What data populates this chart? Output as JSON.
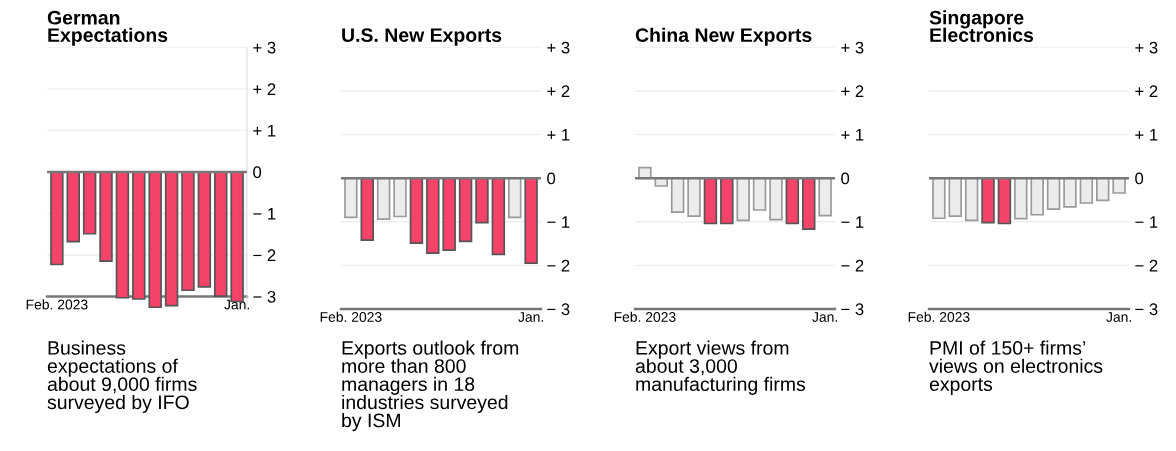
{
  "chart_data": [
    {
      "type": "bar",
      "title": "German\nExpectations",
      "categories": [
        "Feb. 2023",
        null,
        null,
        null,
        null,
        null,
        null,
        null,
        null,
        null,
        null,
        "Jan."
      ],
      "values": [
        -2.23,
        -1.68,
        -1.49,
        -2.15,
        -3.03,
        -3.06,
        -3.26,
        -3.22,
        -2.85,
        -2.77,
        -2.99,
        -3.12
      ],
      "colors": [
        "#f5436a",
        "#f5436a",
        "#f5436a",
        "#f5436a",
        "#f5436a",
        "#f5436a",
        "#f5436a",
        "#f5436a",
        "#f5436a",
        "#f5436a",
        "#f5436a",
        "#f5436a"
      ],
      "ylim": [
        -3.3,
        3
      ],
      "yticks": [
        {
          "value": 3,
          "label": "+ 3"
        },
        {
          "value": 2,
          "label": "+ 2"
        },
        {
          "value": 1,
          "label": "+ 1"
        },
        0,
        {
          "value": -1,
          "label": "− 1"
        },
        {
          "value": -2,
          "label": "− 2"
        },
        {
          "value": -3,
          "label": "− 3"
        }
      ],
      "grid": "y",
      "annotations": [
        "Business\nexpectations of\nabout 9,000 firms\nsurveyed by IFO"
      ]
    },
    {
      "type": "bar",
      "title": "U.S. New Exports",
      "categories": [
        "Feb. 2023",
        null,
        null,
        null,
        null,
        null,
        null,
        null,
        null,
        null,
        null,
        "Jan."
      ],
      "values": [
        -0.9,
        -1.42,
        -0.94,
        -0.88,
        -1.49,
        -1.72,
        -1.65,
        -1.45,
        -1.02,
        -1.75,
        -0.9,
        -1.95
      ],
      "colors": [
        "#ececec",
        "#f5436a",
        "#ececec",
        "#ececec",
        "#f5436a",
        "#f5436a",
        "#f5436a",
        "#f5436a",
        "#f5436a",
        "#f5436a",
        "#ececec",
        "#f5436a"
      ],
      "ylim": [
        -3,
        3
      ],
      "yticks": [
        {
          "value": 3,
          "label": "+ 3"
        },
        {
          "value": 2,
          "label": "+ 2"
        },
        {
          "value": 1,
          "label": "+ 1"
        },
        0,
        {
          "value": -1,
          "label": "− 1"
        },
        {
          "value": -2,
          "label": "− 2"
        },
        {
          "value": -3,
          "label": "− 3"
        }
      ],
      "grid": "y",
      "annotations": [
        "Exports outlook from\nmore than 800\nmanagers in 18\nindustries surveyed\nby ISM"
      ]
    },
    {
      "type": "bar",
      "title": "China New Exports",
      "categories": [
        "Feb. 2023",
        null,
        null,
        null,
        null,
        null,
        null,
        null,
        null,
        null,
        null,
        "Jan."
      ],
      "values": [
        0.24,
        -0.18,
        -0.78,
        -0.87,
        -1.04,
        -1.04,
        -0.97,
        -0.73,
        -0.95,
        -1.04,
        -1.17,
        -0.86
      ],
      "colors": [
        "#ececec",
        "#ececec",
        "#ececec",
        "#ececec",
        "#f5436a",
        "#f5436a",
        "#ececec",
        "#ececec",
        "#ececec",
        "#f5436a",
        "#f5436a",
        "#ececec"
      ],
      "ylim": [
        -3,
        3
      ],
      "yticks": [
        {
          "value": 3,
          "label": "+ 3"
        },
        {
          "value": 2,
          "label": "+ 2"
        },
        {
          "value": 1,
          "label": "+ 1"
        },
        0,
        {
          "value": -1,
          "label": "− 1"
        },
        {
          "value": -2,
          "label": "− 2"
        },
        {
          "value": -3,
          "label": "− 3"
        }
      ],
      "grid": "y",
      "annotations": [
        "Export views from\nabout 3,000\nmanufacturing firms"
      ]
    },
    {
      "type": "bar",
      "title": "Singapore\nElectronics",
      "categories": [
        "Feb. 2023",
        null,
        null,
        null,
        null,
        null,
        null,
        null,
        null,
        null,
        null,
        "Jan."
      ],
      "values": [
        -0.92,
        -0.87,
        -0.97,
        -1.02,
        -1.04,
        -0.93,
        -0.84,
        -0.71,
        -0.66,
        -0.57,
        -0.51,
        -0.34
      ],
      "colors": [
        "#ececec",
        "#ececec",
        "#ececec",
        "#f5436a",
        "#f5436a",
        "#ececec",
        "#ececec",
        "#ececec",
        "#ececec",
        "#ececec",
        "#ececec",
        "#ececec"
      ],
      "ylim": [
        -3,
        3
      ],
      "yticks": [
        {
          "value": 3,
          "label": "+ 3"
        },
        {
          "value": 2,
          "label": "+ 2"
        },
        {
          "value": 1,
          "label": "+ 1"
        },
        0,
        {
          "value": -1,
          "label": "− 1"
        },
        {
          "value": -2,
          "label": "− 2"
        },
        {
          "value": -3,
          "label": "− 3"
        }
      ],
      "grid": "y",
      "annotations": [
        "PMI of 150+ firms’\nviews on electronics\nexports"
      ]
    }
  ]
}
